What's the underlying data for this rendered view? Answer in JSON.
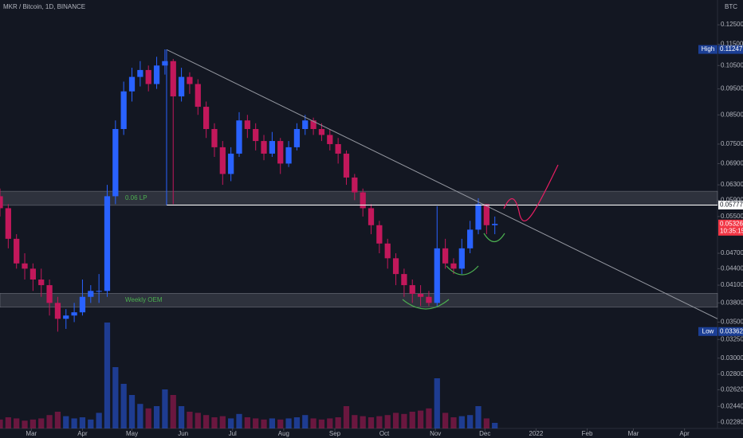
{
  "chart_data": {
    "type": "candlestick",
    "title": "MKR / Bitcoin, 1D, BINANCE",
    "currency": "BTC",
    "log_scale": true,
    "up_color": "#2962ff",
    "down_color": "#c2185b",
    "x": [
      0,
      5,
      10,
      15,
      20,
      25,
      30,
      35,
      40,
      45,
      50,
      55,
      60,
      65,
      70,
      75,
      80,
      85,
      90,
      95,
      100,
      105,
      110,
      115,
      120,
      125,
      130,
      135,
      140,
      145,
      150,
      155,
      160,
      165,
      170,
      175,
      180,
      185,
      190,
      195,
      200,
      205,
      210,
      215,
      220,
      225,
      230,
      235,
      240,
      245,
      250,
      255,
      260,
      265,
      270,
      275,
      280,
      285,
      290,
      295,
      300
    ],
    "open": [
      0.06,
      0.057,
      0.05,
      0.045,
      0.044,
      0.042,
      0.041,
      0.038,
      0.0355,
      0.036,
      0.0365,
      0.039,
      0.04,
      0.04,
      0.06,
      0.08,
      0.094,
      0.1,
      0.103,
      0.097,
      0.105,
      0.107,
      0.092,
      0.1,
      0.097,
      0.088,
      0.08,
      0.074,
      0.066,
      0.072,
      0.083,
      0.08,
      0.076,
      0.072,
      0.076,
      0.069,
      0.074,
      0.08,
      0.083,
      0.08,
      0.078,
      0.075,
      0.072,
      0.065,
      0.061,
      0.057,
      0.053,
      0.049,
      0.046,
      0.043,
      0.041,
      0.0395,
      0.039,
      0.038,
      0.048,
      0.045,
      0.044,
      0.048,
      0.052,
      0.058,
      0.053
    ],
    "high": [
      0.062,
      0.058,
      0.051,
      0.047,
      0.045,
      0.044,
      0.042,
      0.039,
      0.037,
      0.038,
      0.042,
      0.041,
      0.043,
      0.063,
      0.083,
      0.098,
      0.104,
      0.107,
      0.105,
      0.109,
      0.1125,
      0.108,
      0.104,
      0.102,
      0.099,
      0.09,
      0.082,
      0.076,
      0.074,
      0.086,
      0.085,
      0.082,
      0.078,
      0.079,
      0.077,
      0.076,
      0.082,
      0.085,
      0.084,
      0.082,
      0.08,
      0.077,
      0.073,
      0.066,
      0.062,
      0.058,
      0.054,
      0.05,
      0.047,
      0.044,
      0.042,
      0.041,
      0.04,
      0.0575,
      0.05,
      0.046,
      0.05,
      0.054,
      0.0595,
      0.058,
      0.055
    ],
    "low": [
      0.055,
      0.048,
      0.044,
      0.042,
      0.04,
      0.039,
      0.036,
      0.0336,
      0.034,
      0.035,
      0.036,
      0.038,
      0.038,
      0.039,
      0.058,
      0.078,
      0.09,
      0.096,
      0.094,
      0.095,
      0.101,
      0.058,
      0.09,
      0.093,
      0.085,
      0.077,
      0.071,
      0.063,
      0.064,
      0.071,
      0.077,
      0.073,
      0.07,
      0.071,
      0.066,
      0.068,
      0.073,
      0.078,
      0.078,
      0.076,
      0.073,
      0.069,
      0.063,
      0.059,
      0.055,
      0.051,
      0.047,
      0.044,
      0.041,
      0.039,
      0.038,
      0.0375,
      0.0375,
      0.0375,
      0.044,
      0.043,
      0.043,
      0.047,
      0.051,
      0.051,
      0.051
    ],
    "close": [
      0.057,
      0.05,
      0.045,
      0.044,
      0.042,
      0.041,
      0.038,
      0.0355,
      0.036,
      0.0365,
      0.039,
      0.04,
      0.04,
      0.06,
      0.08,
      0.094,
      0.1,
      0.103,
      0.097,
      0.105,
      0.107,
      0.092,
      0.1,
      0.097,
      0.088,
      0.08,
      0.074,
      0.066,
      0.072,
      0.083,
      0.08,
      0.076,
      0.072,
      0.076,
      0.069,
      0.074,
      0.08,
      0.083,
      0.08,
      0.078,
      0.075,
      0.072,
      0.065,
      0.061,
      0.057,
      0.053,
      0.049,
      0.046,
      0.043,
      0.041,
      0.0395,
      0.039,
      0.038,
      0.048,
      0.045,
      0.044,
      0.048,
      0.052,
      0.058,
      0.053,
      0.0533
    ],
    "volume": [
      8,
      10,
      9,
      7,
      8,
      9,
      12,
      15,
      11,
      9,
      10,
      8,
      14,
      95,
      55,
      40,
      30,
      22,
      18,
      20,
      35,
      30,
      20,
      15,
      14,
      12,
      10,
      11,
      9,
      13,
      10,
      9,
      8,
      9,
      8,
      9,
      10,
      12,
      9,
      8,
      9,
      10,
      20,
      12,
      11,
      10,
      11,
      12,
      14,
      13,
      15,
      16,
      18,
      45,
      14,
      10,
      11,
      12,
      20,
      9,
      5
    ],
    "volume_lim": [
      0,
      100
    ],
    "xlim": [
      0,
      435
    ],
    "xticks": [
      {
        "value": 19,
        "label": "Mar"
      },
      {
        "value": 50,
        "label": "Apr"
      },
      {
        "value": 80,
        "label": "May"
      },
      {
        "value": 111,
        "label": "Jun"
      },
      {
        "value": 141,
        "label": "Jul"
      },
      {
        "value": 172,
        "label": "Aug"
      },
      {
        "value": 203,
        "label": "Sep"
      },
      {
        "value": 233,
        "label": "Oct"
      },
      {
        "value": 264,
        "label": "Nov"
      },
      {
        "value": 294,
        "label": "Dec"
      },
      {
        "value": 325,
        "label": "2022"
      },
      {
        "value": 356,
        "label": "Feb"
      },
      {
        "value": 384,
        "label": "Mar"
      },
      {
        "value": 415,
        "label": "Apr"
      }
    ],
    "ylim": [
      0.0222,
      0.139
    ],
    "yticks": [
      {
        "value": 0.125,
        "label": "0.12500"
      },
      {
        "value": 0.115,
        "label": "0.11500"
      },
      {
        "value": 0.105,
        "label": "0.10500"
      },
      {
        "value": 0.095,
        "label": "0.09500"
      },
      {
        "value": 0.085,
        "label": "0.08500"
      },
      {
        "value": 0.075,
        "label": "0.07500"
      },
      {
        "value": 0.069,
        "label": "0.06900"
      },
      {
        "value": 0.063,
        "label": "0.06300"
      },
      {
        "value": 0.059,
        "label": "0.05900"
      },
      {
        "value": 0.055,
        "label": "0.05500"
      },
      {
        "value": 0.047,
        "label": "0.04700"
      },
      {
        "value": 0.044,
        "label": "0.04400"
      },
      {
        "value": 0.041,
        "label": "0.04100"
      },
      {
        "value": 0.038,
        "label": "0.03800"
      },
      {
        "value": 0.035,
        "label": "0.03500"
      },
      {
        "value": 0.0325,
        "label": "0.03250"
      },
      {
        "value": 0.03,
        "label": "0.03000"
      },
      {
        "value": 0.028,
        "label": "0.02800"
      },
      {
        "value": 0.0262,
        "label": "0.02620"
      },
      {
        "value": 0.0244,
        "label": "0.02440"
      },
      {
        "value": 0.0228,
        "label": "0.02280"
      }
    ],
    "markers": [
      {
        "name": "High",
        "value": 0.11247,
        "color": "#1c3f95"
      },
      {
        "value": 0.05777,
        "color": "#ffffff"
      },
      {
        "value": 0.05326,
        "sub_label": "10:35:15",
        "color": "#f23645"
      },
      {
        "name": "Low",
        "value": 0.03362,
        "color": "#1c3f95"
      }
    ],
    "zones": [
      {
        "label": "0.06 LP",
        "from": 0.0577,
        "to": 0.0613
      },
      {
        "label": "Weekly OEM",
        "from": 0.0373,
        "to": 0.0396
      }
    ],
    "trendline": {
      "x": [
        101,
        435
      ],
      "y": [
        0.1124,
        0.0355
      ]
    },
    "hline": {
      "value": 0.05777,
      "x_start": 101
    }
  }
}
